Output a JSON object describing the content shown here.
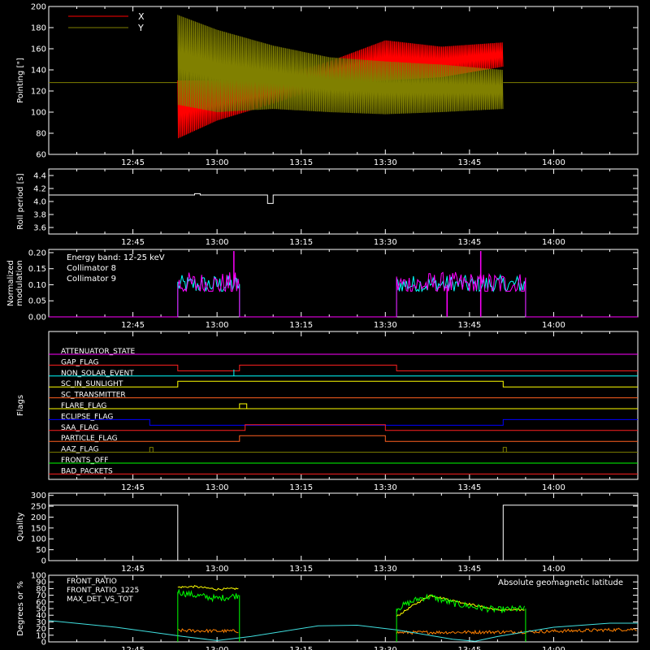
{
  "chart_data": {
    "type": "multi-panel time series",
    "x_axis": {
      "range": [
        "12:30",
        "14:15"
      ],
      "ticks": [
        "12:45",
        "13:00",
        "13:15",
        "13:30",
        "13:45",
        "14:00"
      ]
    },
    "panels": [
      {
        "id": "pointing",
        "type": "line",
        "ylabel": "Pointing [\"]",
        "ylim": [
          60,
          200
        ],
        "yticks": [
          60,
          80,
          100,
          120,
          140,
          160,
          180,
          200
        ],
        "legend_position": "top-left",
        "baseline_value": 128,
        "series": [
          {
            "name": "X",
            "color": "#ff0000",
            "envelope": [
              {
                "t": "12:53",
                "lo": 75,
                "hi": 130
              },
              {
                "t": "13:00",
                "lo": 92,
                "hi": 130
              },
              {
                "t": "13:10",
                "lo": 108,
                "hi": 133
              },
              {
                "t": "13:20",
                "lo": 125,
                "hi": 148
              },
              {
                "t": "13:30",
                "lo": 130,
                "hi": 168
              },
              {
                "t": "13:40",
                "lo": 133,
                "hi": 162
              },
              {
                "t": "13:51",
                "lo": 143,
                "hi": 166
              }
            ]
          },
          {
            "name": "Y",
            "color": "#808000",
            "envelope": [
              {
                "t": "12:53",
                "lo": 107,
                "hi": 192
              },
              {
                "t": "13:00",
                "lo": 100,
                "hi": 178
              },
              {
                "t": "13:10",
                "lo": 103,
                "hi": 163
              },
              {
                "t": "13:20",
                "lo": 100,
                "hi": 152
              },
              {
                "t": "13:30",
                "lo": 98,
                "hi": 148
              },
              {
                "t": "13:40",
                "lo": 100,
                "hi": 145
              },
              {
                "t": "13:51",
                "lo": 103,
                "hi": 140
              }
            ]
          }
        ]
      },
      {
        "id": "roll",
        "type": "line",
        "ylabel": "Roll period [s]",
        "ylim": [
          3.5,
          4.5
        ],
        "yticks": [
          3.6,
          3.8,
          4.0,
          4.2,
          4.4
        ],
        "series": [
          {
            "name": "roll period",
            "color": "#ffffff",
            "points": [
              [
                "12:30",
                4.1
              ],
              [
                "12:56",
                4.1
              ],
              [
                "12:56",
                4.12
              ],
              [
                "12:57",
                4.12
              ],
              [
                "12:57",
                4.1
              ],
              [
                "13:09",
                4.1
              ],
              [
                "13:09",
                3.97
              ],
              [
                "13:10",
                3.97
              ],
              [
                "13:10",
                4.1
              ],
              [
                "14:15",
                4.1
              ]
            ]
          }
        ]
      },
      {
        "id": "modulation",
        "type": "line",
        "ylabel": "Normalized modulation",
        "ylim": [
          0,
          0.21
        ],
        "yticks": [
          0.0,
          0.05,
          0.1,
          0.15,
          0.2
        ],
        "annotation": "Energy band: 12-25 keV",
        "legend_position": "top-left",
        "series": [
          {
            "name": "Collimator 8",
            "color": "#00ffff",
            "active_intervals": [
              [
                "12:53",
                "13:04"
              ],
              [
                "13:32",
                "13:55"
              ]
            ],
            "baseline": 0.0,
            "active_level": 0.1,
            "spread": 0.03
          },
          {
            "name": "Collimator 9",
            "color": "#ff00ff",
            "active_intervals": [
              [
                "12:53",
                "13:04"
              ],
              [
                "13:32",
                "13:55"
              ]
            ],
            "baseline": 0.0,
            "active_level": 0.1,
            "spread": 0.04,
            "spikes_to_zero": [
              "13:41",
              "13:47"
            ],
            "spikes_high": [
              "13:03",
              "13:47"
            ]
          }
        ]
      },
      {
        "id": "flags",
        "type": "step",
        "ylabel": "Flags",
        "flags": [
          {
            "label": "ATTENUATOR_STATE",
            "color": "#ff00ff",
            "transitions": []
          },
          {
            "label": "GAP_FLAG",
            "color": "#ff2020",
            "transitions": [
              [
                "12:30",
                0
              ],
              [
                "12:53",
                -1
              ],
              [
                "13:04",
                0
              ],
              [
                "13:32",
                -1
              ]
            ]
          },
          {
            "label": "NON_SOLAR_EVENT",
            "color": "#00ffff",
            "transitions": [],
            "spikes": [
              "13:03"
            ]
          },
          {
            "label": "SC_IN_SUNLIGHT",
            "color": "#ffff00",
            "transitions": [
              [
                "12:30",
                0
              ],
              [
                "12:53",
                1
              ],
              [
                "13:51",
                0
              ]
            ]
          },
          {
            "label": "SC_TRANSMITTER",
            "color": "#ff6020",
            "transitions": []
          },
          {
            "label": "FLARE_FLAG",
            "color": "#ffff00",
            "transitions": [],
            "pulses": [
              [
                "13:04",
                "13:05"
              ]
            ]
          },
          {
            "label": "ECLIPSE_FLAG",
            "color": "#0000ff",
            "transitions": [
              [
                "12:30",
                0
              ],
              [
                "12:48",
                -1
              ],
              [
                "13:51",
                0
              ]
            ]
          },
          {
            "label": "SAA_FLAG",
            "color": "#ff2020",
            "transitions": [
              [
                "12:30",
                0
              ],
              [
                "13:05",
                1
              ],
              [
                "13:30",
                0
              ]
            ]
          },
          {
            "label": "PARTICLE_FLAG",
            "color": "#ff6020",
            "transitions": [
              [
                "12:30",
                0
              ],
              [
                "13:04",
                1
              ],
              [
                "13:30",
                0
              ]
            ]
          },
          {
            "label": "AAZ_FLAG",
            "color": "#808000",
            "transitions": [],
            "pulses": [
              [
                "12:48",
                "12:48"
              ],
              [
                "13:51",
                "13:51"
              ]
            ]
          },
          {
            "label": "FRONTS_OFF",
            "color": "#00ff00",
            "transitions": []
          },
          {
            "label": "BAD_PACKETS",
            "color": "#ff2020",
            "transitions": []
          }
        ]
      },
      {
        "id": "quality",
        "type": "step",
        "ylabel": "Quality",
        "ylim": [
          0,
          310
        ],
        "yticks": [
          0,
          50,
          100,
          150,
          200,
          250,
          300
        ],
        "series": [
          {
            "name": "quality",
            "color": "#ffffff",
            "points": [
              [
                "12:30",
                255
              ],
              [
                "12:53",
                255
              ],
              [
                "12:53",
                0
              ],
              [
                "13:51",
                0
              ],
              [
                "13:51",
                255
              ],
              [
                "14:15",
                255
              ]
            ]
          }
        ]
      },
      {
        "id": "ratios",
        "type": "line",
        "ylabel": "Degrees or %",
        "ylim": [
          0,
          100
        ],
        "yticks": [
          0,
          10,
          20,
          30,
          40,
          50,
          60,
          70,
          80,
          90,
          100
        ],
        "legend_position": "top-left",
        "series": [
          {
            "name": "FRONT_RATIO",
            "color": "#ffff00",
            "segments": [
              [
                [
                  "12:53",
                  82
                ],
                [
                  "12:56",
                  83
                ],
                [
                  "13:00",
                  79
                ],
                [
                  "13:04",
                  80
                ]
              ],
              [
                [
                  "13:32",
                  38
                ],
                [
                  "13:35",
                  55
                ],
                [
                  "13:38",
                  70
                ],
                [
                  "13:42",
                  62
                ],
                [
                  "13:46",
                  55
                ],
                [
                  "13:50",
                  48
                ],
                [
                  "13:55",
                  48
                ]
              ]
            ]
          },
          {
            "name": "FRONT_RATIO_1225",
            "color": "#00ff00",
            "segments": [
              [
                [
                  "12:53",
                  75
                ],
                [
                  "12:56",
                  70
                ],
                [
                  "13:00",
                  65
                ],
                [
                  "13:04",
                  70
                ]
              ],
              [
                [
                  "13:32",
                  50
                ],
                [
                  "13:36",
                  65
                ],
                [
                  "13:38",
                  68
                ],
                [
                  "13:42",
                  58
                ],
                [
                  "13:46",
                  52
                ],
                [
                  "13:50",
                  48
                ],
                [
                  "13:55",
                  50
                ]
              ]
            ]
          },
          {
            "name": "MAX_DET_VS_TOT",
            "color": "#ff8000",
            "segments": [
              [
                [
                  "12:53",
                  17
                ],
                [
                  "13:04",
                  16
                ]
              ],
              [
                [
                  "13:32",
                  14
                ],
                [
                  "13:55",
                  15
                ],
                [
                  "14:15",
                  19
                ]
              ]
            ]
          },
          {
            "name": "Absolute geomagnetic latitude",
            "color": "#40e0e0",
            "points": [
              [
                "12:30",
                32
              ],
              [
                "12:42",
                22
              ],
              [
                "12:54",
                8
              ],
              [
                "13:00",
                2
              ],
              [
                "13:06",
                8
              ],
              [
                "13:18",
                24
              ],
              [
                "13:25",
                25
              ],
              [
                "13:32",
                18
              ],
              [
                "13:42",
                4
              ],
              [
                "13:46",
                1
              ],
              [
                "13:50",
                8
              ],
              [
                "14:00",
                22
              ],
              [
                "14:10",
                28
              ],
              [
                "14:15",
                28
              ]
            ]
          }
        ]
      }
    ]
  }
}
